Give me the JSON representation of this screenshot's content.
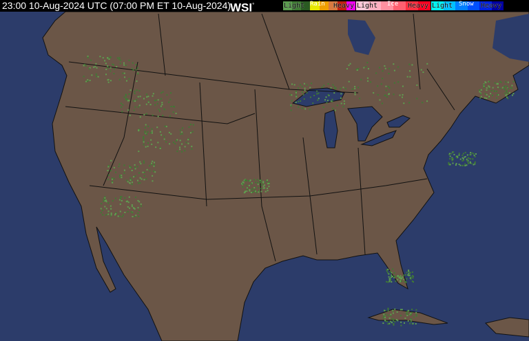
{
  "header": {
    "timestamp": "23:00 10-Aug-2024 UTC  (07:00 PM ET 10-Aug-2024)",
    "logo": "WSI",
    "legend": {
      "rain": {
        "title": "Rain",
        "light": "Light",
        "heavy": "Heavy",
        "colors": [
          "#5a9a4e",
          "#3f7a34",
          "#2a5a22",
          "#e8e800",
          "#f0a000",
          "#d87a40",
          "#c02010",
          "#f000f0"
        ]
      },
      "ice": {
        "title": "Ice",
        "light": "Light",
        "heavy": "Heavy",
        "colors": [
          "#ffc8d8",
          "#ffb0c0",
          "#ff90a0",
          "#ff6070",
          "#ff3040",
          "#ff0020"
        ]
      },
      "snow": {
        "title": "Snow",
        "light": "Light",
        "heavy": "Heavy",
        "colors": [
          "#00f0f0",
          "#00c0ff",
          "#0080ff",
          "#0050ff",
          "#0020e0",
          "#0000a0"
        ]
      }
    }
  },
  "map": {
    "land_color": "#6b5647",
    "water_color": "#2c3c6a",
    "border_color": "#111111",
    "precip_color": "#5fa050"
  }
}
